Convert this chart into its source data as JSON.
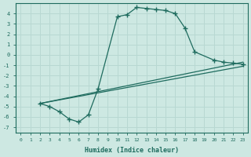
{
  "xlabel": "Humidex (Indice chaleur)",
  "bg_color": "#cde8e2",
  "line_color": "#1e6b5e",
  "grid_color": "#b8d8d2",
  "xlim": [
    -0.5,
    23.5
  ],
  "ylim": [
    -7.5,
    5.0
  ],
  "xticks": [
    0,
    1,
    2,
    3,
    4,
    5,
    6,
    7,
    8,
    9,
    10,
    11,
    12,
    13,
    14,
    15,
    16,
    17,
    18,
    19,
    20,
    21,
    22,
    23
  ],
  "yticks": [
    -7,
    -6,
    -5,
    -4,
    -3,
    -2,
    -1,
    0,
    1,
    2,
    3,
    4
  ],
  "curve1_x": [
    2,
    3,
    4,
    5,
    6,
    7,
    8,
    10,
    11,
    12,
    13,
    14,
    15,
    16,
    17,
    18,
    20,
    21,
    22,
    23
  ],
  "curve1_y": [
    -4.7,
    -5.0,
    -5.5,
    -6.2,
    -6.5,
    -5.8,
    -3.3,
    3.7,
    3.9,
    4.6,
    4.5,
    4.4,
    4.3,
    4.0,
    2.6,
    0.3,
    -0.5,
    -0.7,
    -0.8,
    -0.9
  ],
  "line1_x": [
    2,
    23
  ],
  "line1_y": [
    -4.7,
    -0.7
  ],
  "line2_x": [
    2,
    23
  ],
  "line2_y": [
    -4.7,
    -1.1
  ]
}
